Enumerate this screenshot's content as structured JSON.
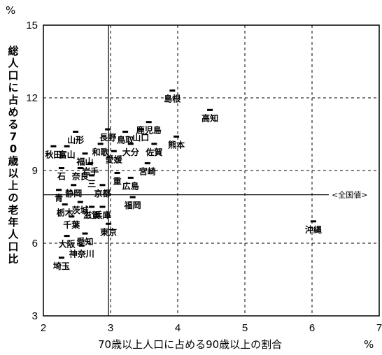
{
  "chart_data": {
    "type": "scatter",
    "xlabel": "70歳以上人口に占める90歳以上の割合",
    "ylabel": "総人口に占める70歳以上の老年人口比",
    "x_unit": "%",
    "y_unit": "%",
    "xlim": [
      2,
      7
    ],
    "ylim": [
      3,
      15
    ],
    "x_ticks": [
      "2",
      "3",
      "4",
      "5",
      "6",
      "7"
    ],
    "y_ticks": [
      "3",
      "6",
      "9",
      "12",
      "15"
    ],
    "grid": true,
    "reference_lines": {
      "horizontal": {
        "y": 8.0,
        "label": "<全国値>"
      },
      "vertical": {
        "x": 2.97
      }
    },
    "points": [
      {
        "label": "島根",
        "x": 3.92,
        "y": 12.3
      },
      {
        "label": "高知",
        "x": 4.48,
        "y": 11.5
      },
      {
        "label": "鹿児島",
        "x": 3.57,
        "y": 11.0
      },
      {
        "label": "山口",
        "x": 3.45,
        "y": 10.7
      },
      {
        "label": "熊本",
        "x": 3.98,
        "y": 10.4
      },
      {
        "label": "山形",
        "x": 2.48,
        "y": 10.6
      },
      {
        "label": "長野",
        "x": 2.96,
        "y": 10.7
      },
      {
        "label": "鳥取",
        "x": 3.22,
        "y": 10.6
      },
      {
        "label": "秋田",
        "x": 2.15,
        "y": 10.0
      },
      {
        "label": "富山",
        "x": 2.35,
        "y": 10.0
      },
      {
        "label": "和歌",
        "x": 2.85,
        "y": 10.1
      },
      {
        "label": "大分",
        "x": 3.3,
        "y": 10.1
      },
      {
        "label": "佐賀",
        "x": 3.65,
        "y": 10.1
      },
      {
        "label": "福山",
        "x": 2.62,
        "y": 9.7
      },
      {
        "label": "愛媛",
        "x": 3.05,
        "y": 9.8
      },
      {
        "label": "宮崎",
        "x": 3.55,
        "y": 9.3
      },
      {
        "label": "岩手",
        "x": 2.7,
        "y": 9.3
      },
      {
        "label": "石",
        "x": 2.27,
        "y": 9.1
      },
      {
        "label": "奈良",
        "x": 2.55,
        "y": 9.1
      },
      {
        "label": "重",
        "x": 3.1,
        "y": 8.9
      },
      {
        "label": "三",
        "x": 2.72,
        "y": 8.8
      },
      {
        "label": "広島",
        "x": 3.3,
        "y": 8.7
      },
      {
        "label": "京都",
        "x": 2.88,
        "y": 8.4
      },
      {
        "label": "青",
        "x": 2.23,
        "y": 8.2
      },
      {
        "label": "静岡",
        "x": 2.45,
        "y": 8.4
      },
      {
        "label": "福岡",
        "x": 3.33,
        "y": 7.9
      },
      {
        "label": "茨城",
        "x": 2.55,
        "y": 7.7
      },
      {
        "label": "栃木",
        "x": 2.32,
        "y": 7.6
      },
      {
        "label": "滋賀",
        "x": 2.72,
        "y": 7.5
      },
      {
        "label": "兵庫",
        "x": 2.88,
        "y": 7.5
      },
      {
        "label": "千葉",
        "x": 2.42,
        "y": 7.1
      },
      {
        "label": "東京",
        "x": 2.97,
        "y": 6.8
      },
      {
        "label": "大阪",
        "x": 2.35,
        "y": 6.3
      },
      {
        "label": "愛知",
        "x": 2.62,
        "y": 6.4
      },
      {
        "label": "神奈川",
        "x": 2.57,
        "y": 5.9
      },
      {
        "label": "埼玉",
        "x": 2.27,
        "y": 5.4
      },
      {
        "label": "沖縄",
        "x": 6.02,
        "y": 6.9
      }
    ]
  }
}
